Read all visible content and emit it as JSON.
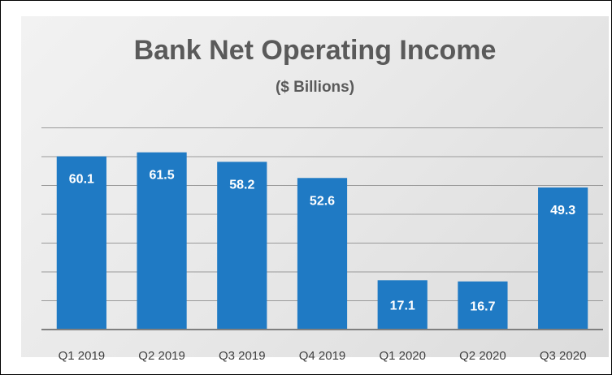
{
  "chart_data": {
    "type": "bar",
    "title": "Bank Net Operating Income",
    "subtitle": "($ Billions)",
    "categories": [
      "Q1 2019",
      "Q2 2019",
      "Q3 2019",
      "Q4 2019",
      "Q1 2020",
      "Q2 2020",
      "Q3 2020"
    ],
    "values": [
      60.1,
      61.5,
      58.2,
      52.6,
      17.1,
      16.7,
      49.3
    ],
    "value_labels": [
      "60.1",
      "61.5",
      "58.2",
      "52.6",
      "17.1",
      "16.7",
      "49.3"
    ],
    "xlabel": "",
    "ylabel": "",
    "ylim": [
      0,
      70
    ],
    "grid": true,
    "legend": "none",
    "bar_color": "#1f7ac4",
    "label_color": "#ffffff"
  }
}
